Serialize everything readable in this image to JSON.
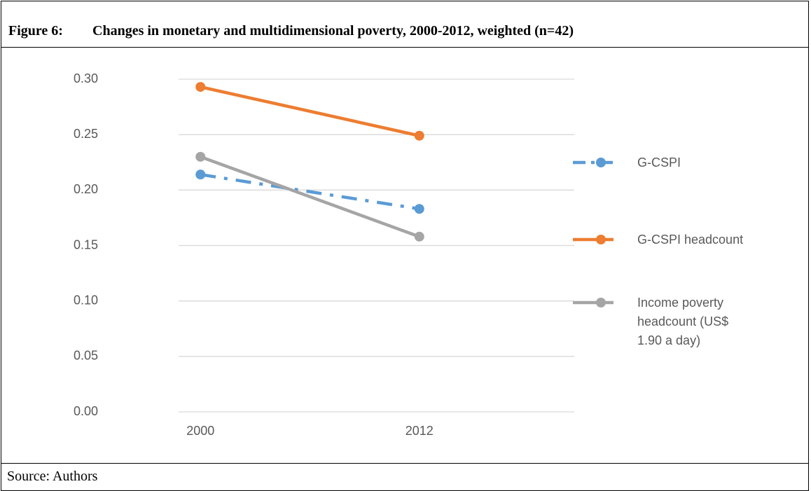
{
  "figure": {
    "label": "Figure 6:",
    "title": "Changes in monetary and multidimensional poverty, 2000-2012, weighted (n=42)",
    "source": "Source: Authors"
  },
  "chart_data": {
    "type": "line",
    "categories": [
      "2000",
      "2012"
    ],
    "series": [
      {
        "name": "G-CSPI",
        "color": "#5b9bd5",
        "dash": "dash-dot",
        "values": [
          0.214,
          0.183
        ]
      },
      {
        "name": "G-CSPI headcount",
        "color": "#ed7d31",
        "dash": "solid",
        "values": [
          0.293,
          0.249
        ]
      },
      {
        "name": "Income poverty headcount (US$ 1.90 a day)",
        "color": "#a5a5a5",
        "dash": "solid",
        "values": [
          0.23,
          0.158
        ]
      }
    ],
    "ylim": [
      0,
      0.3
    ],
    "yticks": [
      {
        "value": 0,
        "label": "0.00"
      },
      {
        "value": 0.05,
        "label": "0.05"
      },
      {
        "value": 0.1,
        "label": "0.10"
      },
      {
        "value": 0.15,
        "label": "0.15"
      },
      {
        "value": 0.2,
        "label": "0.20"
      },
      {
        "value": 0.25,
        "label": "0.25"
      },
      {
        "value": 0.3,
        "label": "0.30"
      }
    ],
    "grid": true,
    "legend": "right"
  }
}
